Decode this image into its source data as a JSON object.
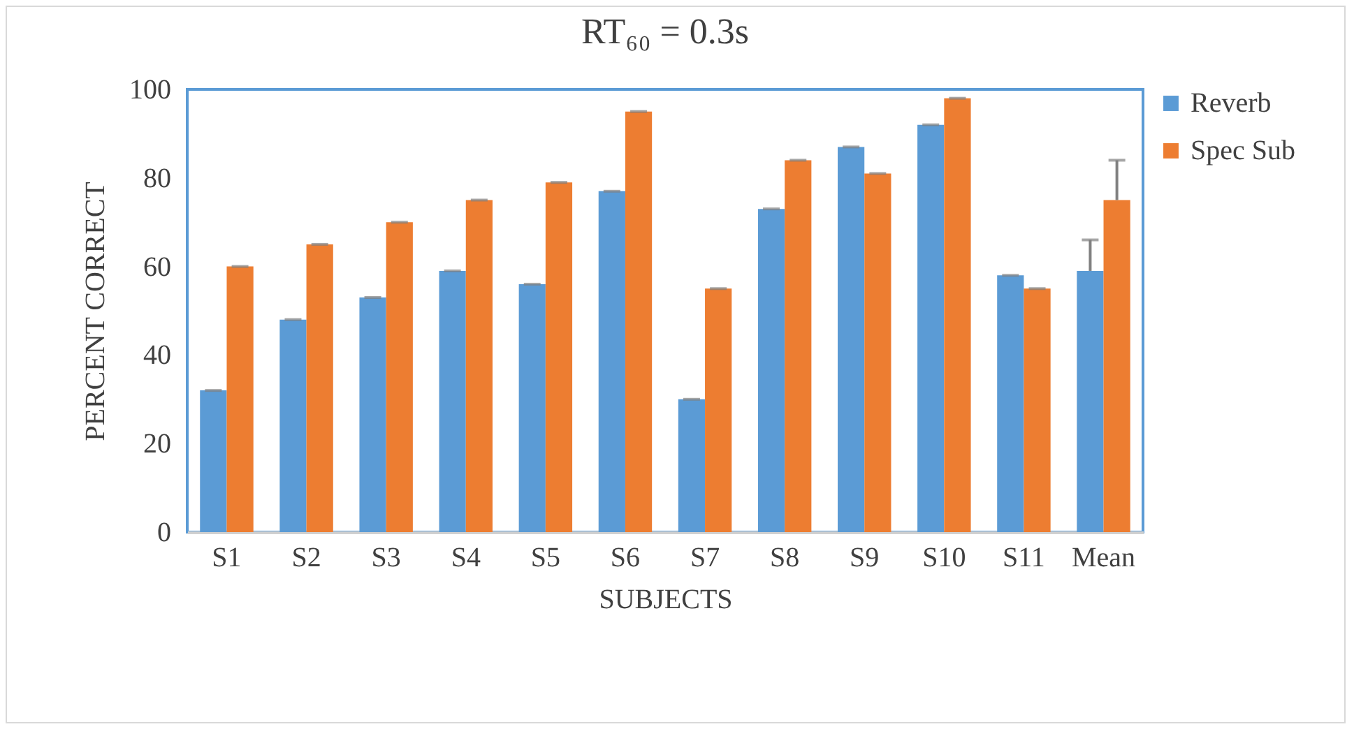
{
  "chart_data": {
    "type": "bar",
    "title": "RT₆₀ = 0.3s",
    "xlabel": "SUBJECTS",
    "ylabel": "PERCENT CORRECT",
    "categories": [
      "S1",
      "S2",
      "S3",
      "S4",
      "S5",
      "S6",
      "S7",
      "S8",
      "S9",
      "S10",
      "S11",
      "Mean"
    ],
    "series": [
      {
        "name": "Reverb",
        "color": "#5b9bd5",
        "values": [
          32,
          48,
          53,
          59,
          56,
          77,
          30,
          73,
          87,
          92,
          58,
          59
        ],
        "errors": [
          0,
          0,
          0,
          0,
          0,
          0,
          0,
          0,
          0,
          0,
          0,
          [
            59,
            66
          ]
        ]
      },
      {
        "name": "Spec Sub",
        "color": "#ed7d31",
        "values": [
          60,
          65,
          70,
          75,
          79,
          95,
          55,
          84,
          81,
          98,
          55,
          75
        ],
        "errors": [
          0,
          0,
          0,
          0,
          0,
          0,
          0,
          0,
          0,
          0,
          0,
          [
            75,
            84
          ]
        ]
      }
    ],
    "ylim": [
      0,
      100
    ],
    "yticks": [
      0,
      20,
      40,
      60,
      80,
      100
    ],
    "grid": false,
    "legend": "right"
  }
}
